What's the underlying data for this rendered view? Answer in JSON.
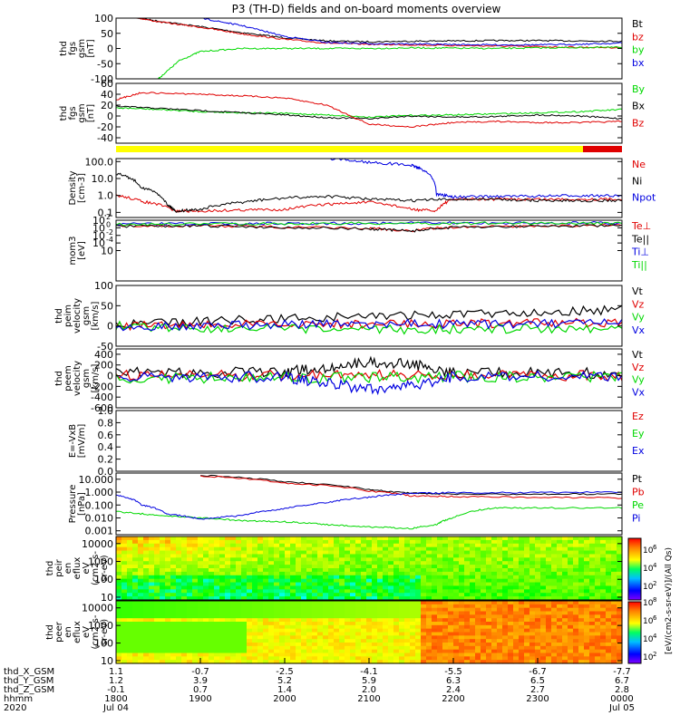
{
  "title": "P3 (TH-D) fields and on-board moments overview",
  "ephem": {
    "row_labels": [
      "thd_X_GSM",
      "thd_Y_GSM",
      "thd_Z_GSM",
      "hhmm",
      "2020"
    ],
    "columns": [
      {
        "x": "1.1",
        "y": "1.2",
        "z": "-0.1",
        "t": "1800",
        "d": "Jul 04"
      },
      {
        "x": "-0.7",
        "y": "3.9",
        "z": "0.7",
        "t": "1900",
        "d": ""
      },
      {
        "x": "-2.5",
        "y": "5.2",
        "z": "1.4",
        "t": "2000",
        "d": ""
      },
      {
        "x": "-4.1",
        "y": "5.9",
        "z": "2.0",
        "t": "2100",
        "d": ""
      },
      {
        "x": "-5.5",
        "y": "6.3",
        "z": "2.4",
        "t": "2200",
        "d": ""
      },
      {
        "x": "-6.7",
        "y": "6.5",
        "z": "2.7",
        "t": "2300",
        "d": ""
      },
      {
        "x": "-7.7",
        "y": "6.7",
        "z": "2.8",
        "t": "0000",
        "d": "Jul 05"
      }
    ]
  },
  "colorbar": {
    "label": "[eV/(cm2-s-sr-eV)]/(All Qs)",
    "ticks_upper": [
      "10",
      "10",
      "10"
    ],
    "exp_upper": [
      "6",
      "4",
      "2"
    ],
    "ticks_lower": [
      "10",
      "10",
      "10",
      "10"
    ],
    "exp_lower": [
      "8",
      "6",
      "4",
      "2"
    ]
  },
  "colors": {
    "black": "#000000",
    "red": "#e00000",
    "green": "#00d800",
    "blue": "#0000e0",
    "yellow": "#ffff00"
  },
  "chart_data": [
    {
      "type": "line",
      "ylabel": [
        "thd",
        "fgs",
        "gsm",
        "[nT]"
      ],
      "ylim": [
        -100,
        100
      ],
      "yticks": [
        "100",
        "50",
        "0",
        "-50",
        "-100"
      ],
      "series": [
        {
          "name": "Bt",
          "color": "black",
          "x": [
            0.17,
            0.5,
            1.0,
            1.5,
            2.0,
            2.5,
            3.0,
            3.5,
            4.0,
            4.5,
            5.0,
            5.5,
            6.0
          ],
          "values": [
            105,
            90,
            72,
            52,
            35,
            25,
            22,
            24,
            25,
            26,
            26,
            25,
            24
          ]
        },
        {
          "name": "bz",
          "color": "red",
          "x": [
            0.17,
            0.5,
            1.0,
            1.5,
            2.0,
            2.5,
            3.0,
            3.5,
            4.0,
            4.5,
            5.0,
            5.5,
            6.0
          ],
          "values": [
            105,
            88,
            70,
            48,
            30,
            18,
            14,
            12,
            10,
            8,
            6,
            4,
            3
          ]
        },
        {
          "name": "by",
          "color": "green",
          "x": [
            0.5,
            0.75,
            1.0,
            1.5,
            2.0,
            2.5,
            3.0,
            3.5,
            4.0,
            4.5,
            5.0,
            5.5,
            6.0
          ],
          "values": [
            -100,
            -40,
            -10,
            0,
            0,
            0,
            0,
            2,
            1,
            0,
            2,
            3,
            4
          ]
        },
        {
          "name": "bx",
          "color": "blue",
          "x": [
            0.9,
            1.2,
            1.5,
            2.0,
            2.5,
            3.0,
            3.5,
            4.0,
            4.5,
            5.0,
            5.5,
            6.0
          ],
          "values": [
            105,
            90,
            75,
            40,
            20,
            16,
            15,
            13,
            12,
            12,
            14,
            18
          ]
        }
      ]
    },
    {
      "type": "line",
      "ylabel": [
        "thd",
        "fgs",
        "gsm",
        "[nT]"
      ],
      "ylim": [
        -50,
        60
      ],
      "yticks": [
        "60",
        "40",
        "20",
        "0",
        "-20",
        "-40"
      ],
      "series": [
        {
          "name": "By",
          "color": "green",
          "x": [
            0,
            0.5,
            1.0,
            1.5,
            2.0,
            2.5,
            3.0,
            3.5,
            4.0,
            4.5,
            5.0,
            5.5,
            6.0
          ],
          "values": [
            15,
            12,
            8,
            6,
            5,
            2,
            -2,
            1,
            2,
            4,
            6,
            8,
            12
          ]
        },
        {
          "name": "Bx",
          "color": "black",
          "x": [
            0,
            0.5,
            1.0,
            1.5,
            2.0,
            2.5,
            3.0,
            3.5,
            4.0,
            4.5,
            5.0,
            5.5,
            6.0
          ],
          "values": [
            18,
            14,
            10,
            6,
            2,
            -3,
            -5,
            0,
            -2,
            -1,
            2,
            0,
            -5
          ]
        },
        {
          "name": "Bz",
          "color": "red",
          "x": [
            0,
            0.3,
            1.0,
            1.5,
            2.0,
            2.5,
            3.0,
            3.5,
            4.0,
            4.5,
            5.0,
            5.5,
            6.0
          ],
          "values": [
            30,
            43,
            40,
            37,
            33,
            20,
            -15,
            -20,
            -12,
            -10,
            -12,
            -12,
            -10
          ]
        }
      ]
    },
    {
      "type": "line",
      "ylabel": [
        "Density",
        "[cm-3]"
      ],
      "ylog": true,
      "ylim": [
        0.05,
        150
      ],
      "yticks": [
        "100.0",
        "10.0",
        "1.0",
        "0.1"
      ],
      "series": [
        {
          "name": "Ne",
          "color": "red",
          "x": [
            0,
            0.3,
            0.7,
            1.0,
            1.5,
            2.0,
            2.5,
            3.0,
            3.5,
            3.8,
            4.0,
            4.5,
            5.0,
            5.5,
            6.0
          ],
          "values": [
            1.0,
            0.45,
            0.12,
            0.12,
            0.14,
            0.15,
            0.3,
            0.4,
            0.15,
            0.12,
            0.6,
            0.6,
            0.6,
            0.6,
            0.6
          ]
        },
        {
          "name": "Ni",
          "color": "black",
          "x": [
            0,
            0.3,
            0.6,
            0.7,
            1.0,
            1.5,
            2.0,
            2.5,
            3.0,
            3.5,
            4.0,
            4.5,
            5.0,
            5.5,
            6.0
          ],
          "values": [
            20,
            3,
            0.3,
            0.12,
            0.15,
            0.4,
            0.7,
            0.9,
            0.6,
            0.5,
            0.6,
            0.6,
            0.5,
            0.5,
            0.5
          ]
        },
        {
          "name": "Npot",
          "color": "blue",
          "x": [
            2.5,
            3.0,
            3.5,
            3.6,
            3.8,
            4.0,
            4.5,
            5.0,
            5.5,
            6.0
          ],
          "values": [
            150,
            90,
            60,
            40,
            1.2,
            0.8,
            0.9,
            0.9,
            1.0,
            0.9
          ]
        }
      ]
    },
    {
      "type": "line",
      "ylabel": [
        "mom3",
        "[eV]"
      ],
      "ylog": true,
      "ylim": [
        1e-05,
        1000
      ],
      "yticks": [
        "10",
        "10",
        "10",
        "10",
        "10"
      ],
      "ytick_exp": [
        "2",
        "0",
        "-2",
        "-4",
        ""
      ],
      "series": [
        {
          "name": "Te⊥",
          "color": "red",
          "x": [
            0,
            1,
            2,
            3,
            3.5,
            4,
            5,
            6
          ],
          "values": [
            180,
            200,
            120,
            80,
            40,
            120,
            180,
            200
          ]
        },
        {
          "name": "Te||",
          "color": "black",
          "x": [
            0,
            1,
            2,
            3,
            3.5,
            4,
            5,
            6
          ],
          "values": [
            150,
            180,
            110,
            70,
            35,
            110,
            170,
            190
          ]
        },
        {
          "name": "Ti⊥",
          "color": "blue",
          "x": [
            0,
            1,
            2,
            3,
            4,
            5,
            6
          ],
          "values": [
            300,
            350,
            380,
            400,
            420,
            430,
            440
          ]
        },
        {
          "name": "Ti||",
          "color": "green",
          "x": [
            0,
            1,
            2,
            3,
            4,
            5,
            6
          ],
          "values": [
            280,
            330,
            360,
            380,
            400,
            410,
            420
          ]
        }
      ]
    },
    {
      "type": "line",
      "ylabel": [
        "thd",
        "peim",
        "velocity",
        "gsm",
        "[km/s]"
      ],
      "ylim": [
        -50,
        100
      ],
      "yticks": [
        "100",
        "50",
        "0",
        "-50"
      ],
      "series": [
        {
          "name": "Vt",
          "color": "black",
          "x": [
            0,
            1,
            2,
            3,
            4,
            5,
            6
          ],
          "values": [
            2,
            12,
            18,
            25,
            28,
            35,
            40
          ]
        },
        {
          "name": "Vz",
          "color": "red",
          "x": [
            0,
            1,
            2,
            3,
            4,
            5,
            6
          ],
          "values": [
            0,
            2,
            4,
            5,
            6,
            7,
            8
          ]
        },
        {
          "name": "Vy",
          "color": "green",
          "x": [
            0,
            1,
            2,
            3,
            4,
            5,
            6
          ],
          "values": [
            0,
            -5,
            -8,
            -10,
            -8,
            -6,
            -5
          ]
        },
        {
          "name": "Vx",
          "color": "blue",
          "x": [
            0,
            1,
            2,
            3,
            4,
            5,
            6
          ],
          "values": [
            0,
            1,
            3,
            4,
            5,
            5,
            6
          ]
        }
      ]
    },
    {
      "type": "line",
      "ylabel": [
        "thd",
        "peem",
        "velocity",
        "gsm",
        "[km/s]"
      ],
      "ylim": [
        -600,
        500
      ],
      "yticks": [
        "400",
        "200",
        "0",
        "-200",
        "-400",
        "-600"
      ],
      "series": [
        {
          "name": "Vt",
          "color": "black",
          "x": [
            0,
            1,
            2,
            2.5,
            3,
            3.5,
            4,
            5,
            6
          ],
          "values": [
            50,
            60,
            70,
            150,
            250,
            220,
            60,
            50,
            50
          ]
        },
        {
          "name": "Vz",
          "color": "red",
          "x": [
            0,
            1,
            2,
            3,
            4,
            5,
            6
          ],
          "values": [
            0,
            5,
            5,
            10,
            5,
            5,
            5
          ]
        },
        {
          "name": "Vy",
          "color": "green",
          "x": [
            0,
            1,
            2,
            3,
            4,
            5,
            6
          ],
          "values": [
            -50,
            -40,
            -30,
            -40,
            -20,
            -20,
            -20
          ]
        },
        {
          "name": "Vx",
          "color": "blue",
          "x": [
            0,
            1,
            2,
            2.5,
            3,
            3.5,
            4,
            5,
            6
          ],
          "values": [
            -20,
            -20,
            -30,
            -150,
            -250,
            -200,
            -20,
            -10,
            -10
          ]
        }
      ]
    },
    {
      "type": "line",
      "ylabel": [
        "E=-VxB",
        "[mV/m]"
      ],
      "ylim": [
        0,
        1.0
      ],
      "yticks": [
        "1.0",
        "0.8",
        "0.6",
        "0.4",
        "0.2",
        "0.0"
      ],
      "series": [
        {
          "name": "Ez",
          "color": "red",
          "x": [],
          "values": []
        },
        {
          "name": "Ey",
          "color": "green",
          "x": [],
          "values": []
        },
        {
          "name": "Ex",
          "color": "blue",
          "x": [],
          "values": []
        }
      ]
    },
    {
      "type": "line",
      "ylabel": [
        "Pressure",
        "[nPa]"
      ],
      "ylog": true,
      "ylim": [
        0.0005,
        30
      ],
      "yticks": [
        "10.000",
        "1.000",
        "0.100",
        "0.010",
        "0.001"
      ],
      "series": [
        {
          "name": "Pt",
          "color": "black",
          "x": [
            1.0,
            2.0,
            3.0,
            3.5,
            4.0,
            5.0,
            6.0
          ],
          "values": [
            20,
            6,
            1.5,
            0.8,
            0.7,
            0.7,
            0.7
          ]
        },
        {
          "name": "Pb",
          "color": "red",
          "x": [
            1.0,
            2.0,
            3.0,
            3.5,
            4.0,
            5.0,
            6.0
          ],
          "values": [
            18,
            5,
            1.2,
            0.5,
            0.45,
            0.4,
            0.35
          ]
        },
        {
          "name": "Pe",
          "color": "green",
          "x": [
            0,
            0.5,
            1.0,
            1.5,
            2.0,
            2.5,
            3.0,
            3.5,
            3.8,
            4.0,
            4.5,
            5.0,
            6.0
          ],
          "values": [
            0.03,
            0.015,
            0.01,
            0.006,
            0.005,
            0.003,
            0.002,
            0.0015,
            0.003,
            0.01,
            0.06,
            0.06,
            0.06
          ]
        },
        {
          "name": "Pi",
          "color": "blue",
          "x": [
            0,
            0.3,
            0.6,
            1.0,
            1.5,
            2.0,
            2.5,
            3.0,
            3.5,
            4.0,
            5.0,
            6.0
          ],
          "values": [
            0.6,
            0.1,
            0.02,
            0.008,
            0.015,
            0.05,
            0.15,
            0.4,
            0.8,
            0.9,
            0.9,
            1.0
          ]
        }
      ]
    },
    {
      "type": "heatmap",
      "ylabel": [
        "thd",
        "peir",
        "en",
        "eflux",
        "eV",
        "(cm2-s-",
        "sr-eV)"
      ],
      "ylog": true,
      "ylim": [
        7,
        25000
      ],
      "yticks": [
        "10000",
        "1000",
        "100",
        "10"
      ]
    },
    {
      "type": "heatmap",
      "ylabel": [
        "thd",
        "peer",
        "en",
        "eflux",
        "eV",
        "(cm2-s-",
        "sr-eV)"
      ],
      "ylog": true,
      "ylim": [
        7,
        25000
      ],
      "yticks": [
        "10000",
        "1000",
        "100",
        "10"
      ]
    }
  ]
}
